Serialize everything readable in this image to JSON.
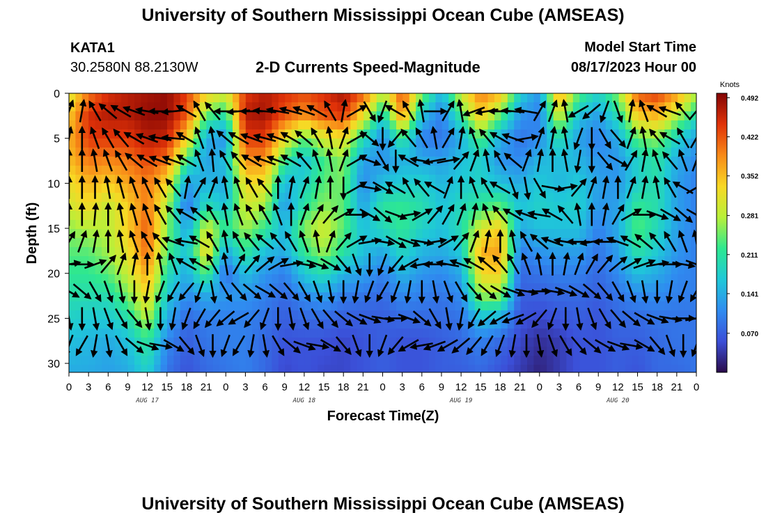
{
  "header": {
    "title": "University of Southern Mississippi Ocean Cube (AMSEAS)",
    "station_id": "KATA1",
    "station_coords": "30.2580N  88.2130W",
    "chart_heading": "2-D Currents Speed-Magnitude",
    "model_start_label": "Model Start Time",
    "model_start_value": "08/17/2023 Hour 00"
  },
  "footer": {
    "title": "University of Southern Mississippi Ocean Cube (AMSEAS)"
  },
  "chart_data": {
    "type": "heatmap",
    "title": "2-D Currents Speed-Magnitude",
    "xlabel": "Forecast Time(Z)",
    "ylabel": "Depth (ft)",
    "x_range_hours": [
      0,
      96
    ],
    "ylim": [
      0,
      31
    ],
    "y_inverted": true,
    "x_tick_labels": [
      "0",
      "3",
      "6",
      "9",
      "12",
      "15",
      "18",
      "21",
      "0",
      "3",
      "6",
      "9",
      "12",
      "15",
      "18",
      "21",
      "0",
      "3",
      "6",
      "9",
      "12",
      "15",
      "18",
      "21",
      "0",
      "3",
      "6",
      "9",
      "12",
      "15",
      "18",
      "21",
      "0"
    ],
    "y_ticks": [
      0,
      5,
      10,
      15,
      20,
      25,
      30
    ],
    "day_labels": [
      {
        "label": "AUG 17",
        "hour": 12
      },
      {
        "label": "AUG 18",
        "hour": 36
      },
      {
        "label": "AUG 19",
        "hour": 60
      },
      {
        "label": "AUG 20",
        "hour": 84
      }
    ],
    "colorbar": {
      "unit": "Knots",
      "ticks": [
        "0.492",
        "0.422",
        "0.352",
        "0.281",
        "0.211",
        "0.141",
        "0.070"
      ],
      "tick_values": [
        0.492,
        0.422,
        0.352,
        0.281,
        0.211,
        0.141,
        0.07
      ],
      "range": [
        0,
        0.5
      ],
      "colors": [
        "#2a0a4a",
        "#3b4fd8",
        "#2f8cf0",
        "#1fc8d8",
        "#2ee890",
        "#b8f03a",
        "#f8d824",
        "#f88a18",
        "#e03208",
        "#820404"
      ]
    },
    "speed_columns": [
      {
        "hour": 0,
        "depth": [
          0.3,
          0.34,
          0.36,
          0.35,
          0.32,
          0.3,
          0.26,
          0.24,
          0.22,
          0.2,
          0.18,
          0.16,
          0.14
        ]
      },
      {
        "hour": 3,
        "depth": [
          0.4,
          0.45,
          0.44,
          0.4,
          0.36,
          0.33,
          0.28,
          0.24,
          0.22,
          0.2,
          0.17,
          0.15,
          0.14
        ]
      },
      {
        "hour": 6,
        "depth": [
          0.45,
          0.47,
          0.44,
          0.39,
          0.34,
          0.29,
          0.28,
          0.27,
          0.24,
          0.2,
          0.17,
          0.14,
          0.13
        ]
      },
      {
        "hour": 9,
        "depth": [
          0.47,
          0.47,
          0.44,
          0.4,
          0.37,
          0.34,
          0.34,
          0.32,
          0.29,
          0.25,
          0.2,
          0.16,
          0.14
        ]
      },
      {
        "hour": 12,
        "depth": [
          0.48,
          0.49,
          0.47,
          0.43,
          0.4,
          0.4,
          0.42,
          0.41,
          0.37,
          0.33,
          0.28,
          0.22,
          0.18
        ]
      },
      {
        "hour": 15,
        "depth": [
          0.49,
          0.49,
          0.46,
          0.4,
          0.33,
          0.28,
          0.26,
          0.24,
          0.2,
          0.17,
          0.14,
          0.11,
          0.09
        ]
      },
      {
        "hour": 18,
        "depth": [
          0.44,
          0.42,
          0.34,
          0.22,
          0.13,
          0.09,
          0.13,
          0.16,
          0.14,
          0.11,
          0.08,
          0.07,
          0.06
        ]
      },
      {
        "hour": 21,
        "depth": [
          0.34,
          0.24,
          0.14,
          0.13,
          0.15,
          0.2,
          0.3,
          0.33,
          0.24,
          0.14,
          0.1,
          0.09,
          0.08
        ]
      },
      {
        "hour": 24,
        "depth": [
          0.3,
          0.2,
          0.12,
          0.16,
          0.14,
          0.16,
          0.22,
          0.14,
          0.08,
          0.12,
          0.1,
          0.1,
          0.09
        ]
      },
      {
        "hour": 27,
        "depth": [
          0.44,
          0.47,
          0.44,
          0.38,
          0.33,
          0.3,
          0.27,
          0.22,
          0.16,
          0.12,
          0.1,
          0.1,
          0.1
        ]
      },
      {
        "hour": 30,
        "depth": [
          0.47,
          0.48,
          0.44,
          0.38,
          0.32,
          0.27,
          0.22,
          0.16,
          0.12,
          0.1,
          0.09,
          0.08,
          0.08
        ]
      },
      {
        "hour": 33,
        "depth": [
          0.45,
          0.42,
          0.32,
          0.22,
          0.15,
          0.12,
          0.15,
          0.14,
          0.1,
          0.08,
          0.07,
          0.06,
          0.05
        ]
      },
      {
        "hour": 36,
        "depth": [
          0.43,
          0.38,
          0.24,
          0.16,
          0.18,
          0.21,
          0.26,
          0.22,
          0.17,
          0.11,
          0.08,
          0.06,
          0.06
        ]
      },
      {
        "hour": 39,
        "depth": [
          0.45,
          0.42,
          0.3,
          0.23,
          0.24,
          0.26,
          0.3,
          0.27,
          0.2,
          0.13,
          0.08,
          0.06,
          0.05
        ]
      },
      {
        "hour": 42,
        "depth": [
          0.48,
          0.44,
          0.32,
          0.26,
          0.25,
          0.24,
          0.24,
          0.21,
          0.15,
          0.1,
          0.07,
          0.05,
          0.05
        ]
      },
      {
        "hour": 45,
        "depth": [
          0.42,
          0.32,
          0.2,
          0.13,
          0.11,
          0.13,
          0.16,
          0.16,
          0.13,
          0.09,
          0.07,
          0.06,
          0.06
        ]
      },
      {
        "hour": 48,
        "depth": [
          0.28,
          0.18,
          0.11,
          0.12,
          0.16,
          0.21,
          0.19,
          0.14,
          0.1,
          0.08,
          0.07,
          0.07,
          0.07
        ]
      },
      {
        "hour": 51,
        "depth": [
          0.43,
          0.38,
          0.22,
          0.15,
          0.17,
          0.22,
          0.22,
          0.19,
          0.15,
          0.11,
          0.08,
          0.06,
          0.06
        ]
      },
      {
        "hour": 54,
        "depth": [
          0.26,
          0.16,
          0.1,
          0.14,
          0.18,
          0.2,
          0.18,
          0.15,
          0.12,
          0.1,
          0.08,
          0.06,
          0.06
        ]
      },
      {
        "hour": 57,
        "depth": [
          0.15,
          0.1,
          0.09,
          0.13,
          0.15,
          0.16,
          0.16,
          0.14,
          0.11,
          0.09,
          0.08,
          0.07,
          0.07
        ]
      },
      {
        "hour": 60,
        "depth": [
          0.3,
          0.22,
          0.14,
          0.16,
          0.17,
          0.19,
          0.2,
          0.17,
          0.14,
          0.11,
          0.09,
          0.08,
          0.07
        ]
      },
      {
        "hour": 63,
        "depth": [
          0.4,
          0.34,
          0.24,
          0.18,
          0.18,
          0.22,
          0.3,
          0.36,
          0.33,
          0.26,
          0.16,
          0.1,
          0.08
        ]
      },
      {
        "hour": 66,
        "depth": [
          0.36,
          0.24,
          0.14,
          0.12,
          0.16,
          0.24,
          0.34,
          0.37,
          0.34,
          0.26,
          0.14,
          0.08,
          0.06
        ]
      },
      {
        "hour": 69,
        "depth": [
          0.18,
          0.12,
          0.09,
          0.11,
          0.14,
          0.16,
          0.14,
          0.1,
          0.08,
          0.07,
          0.06,
          0.05,
          0.04
        ]
      },
      {
        "hour": 72,
        "depth": [
          0.12,
          0.1,
          0.11,
          0.15,
          0.17,
          0.18,
          0.16,
          0.12,
          0.09,
          0.07,
          0.05,
          0.03,
          0.02
        ]
      },
      {
        "hour": 75,
        "depth": [
          0.38,
          0.3,
          0.2,
          0.16,
          0.15,
          0.17,
          0.16,
          0.13,
          0.1,
          0.08,
          0.06,
          0.04,
          0.04
        ]
      },
      {
        "hour": 78,
        "depth": [
          0.24,
          0.16,
          0.13,
          0.15,
          0.17,
          0.18,
          0.16,
          0.13,
          0.1,
          0.08,
          0.07,
          0.06,
          0.06
        ]
      },
      {
        "hour": 81,
        "depth": [
          0.18,
          0.13,
          0.1,
          0.12,
          0.13,
          0.12,
          0.1,
          0.09,
          0.08,
          0.07,
          0.06,
          0.06,
          0.06
        ]
      },
      {
        "hour": 84,
        "depth": [
          0.26,
          0.2,
          0.14,
          0.12,
          0.12,
          0.13,
          0.14,
          0.13,
          0.11,
          0.09,
          0.08,
          0.07,
          0.07
        ]
      },
      {
        "hour": 87,
        "depth": [
          0.42,
          0.34,
          0.24,
          0.18,
          0.18,
          0.22,
          0.24,
          0.21,
          0.16,
          0.11,
          0.08,
          0.07,
          0.06
        ]
      },
      {
        "hour": 90,
        "depth": [
          0.44,
          0.36,
          0.26,
          0.21,
          0.2,
          0.2,
          0.19,
          0.17,
          0.14,
          0.11,
          0.09,
          0.08,
          0.08
        ]
      },
      {
        "hour": 93,
        "depth": [
          0.38,
          0.28,
          0.18,
          0.14,
          0.13,
          0.13,
          0.13,
          0.12,
          0.11,
          0.1,
          0.09,
          0.09,
          0.08
        ]
      },
      {
        "hour": 96,
        "depth": [
          0.28,
          0.2,
          0.13,
          0.11,
          0.1,
          0.1,
          0.1,
          0.1,
          0.1,
          0.1,
          0.09,
          0.09,
          0.09
        ]
      }
    ],
    "speed_depths_ft": [
      0,
      2.5,
      5,
      7.5,
      10,
      12.5,
      15,
      17.5,
      20,
      22.5,
      25,
      27.5,
      31
    ],
    "vector_depths_ft": [
      2,
      5,
      7.5,
      10.5,
      13.5,
      16.5,
      19,
      22,
      25,
      28
    ],
    "vector_hours": [
      0,
      2,
      4,
      6,
      8,
      10,
      12,
      14,
      16,
      18,
      20,
      22,
      24,
      26,
      28,
      30,
      32,
      34,
      36,
      38,
      40,
      42,
      44,
      46,
      48,
      50,
      52,
      54,
      56,
      58,
      60,
      62,
      64,
      66,
      68,
      70,
      72,
      74,
      76,
      78,
      80,
      82,
      84,
      86,
      88,
      90,
      92,
      94,
      96
    ],
    "vector_directions_deg": [
      [
        20,
        10,
        330,
        310,
        300,
        290,
        280,
        270,
        265,
        300,
        330,
        320,
        270,
        265,
        270,
        275,
        280,
        285,
        290,
        300,
        330,
        10,
        60,
        150,
        200,
        300,
        330,
        350,
        90,
        30,
        350,
        250,
        260,
        270,
        275,
        280,
        30,
        20,
        350,
        240,
        230,
        200,
        160,
        10,
        340,
        300,
        290,
        320,
        40
      ],
      [
        10,
        0,
        340,
        330,
        320,
        300,
        290,
        280,
        275,
        300,
        340,
        350,
        310,
        300,
        290,
        285,
        290,
        300,
        310,
        330,
        350,
        20,
        60,
        130,
        180,
        220,
        320,
        330,
        350,
        30,
        10,
        340,
        320,
        300,
        290,
        80,
        20,
        10,
        350,
        200,
        180,
        150,
        140,
        20,
        350,
        320,
        300,
        330,
        30
      ],
      [
        0,
        0,
        350,
        340,
        330,
        310,
        300,
        290,
        290,
        300,
        340,
        355,
        330,
        320,
        300,
        290,
        290,
        300,
        320,
        340,
        350,
        20,
        60,
        110,
        150,
        180,
        300,
        280,
        260,
        80,
        40,
        20,
        350,
        330,
        310,
        20,
        10,
        0,
        350,
        190,
        180,
        140,
        120,
        30,
        10,
        340,
        320,
        340,
        20
      ],
      [
        0,
        0,
        0,
        350,
        345,
        340,
        335,
        330,
        320,
        10,
        30,
        20,
        350,
        340,
        330,
        320,
        0,
        10,
        20,
        10,
        0,
        180,
        60,
        100,
        120,
        300,
        330,
        320,
        300,
        20,
        0,
        340,
        330,
        300,
        160,
        170,
        150,
        100,
        80,
        40,
        20,
        10,
        0,
        20,
        10,
        350,
        330,
        300,
        60
      ],
      [
        0,
        0,
        5,
        0,
        350,
        345,
        340,
        330,
        320,
        300,
        310,
        330,
        350,
        340,
        330,
        330,
        340,
        0,
        20,
        30,
        40,
        60,
        90,
        120,
        130,
        110,
        80,
        60,
        40,
        30,
        20,
        10,
        340,
        320,
        300,
        290,
        280,
        300,
        320,
        350,
        0,
        10,
        30,
        60,
        90,
        110,
        120,
        130,
        120
      ],
      [
        30,
        20,
        10,
        0,
        350,
        340,
        330,
        320,
        290,
        280,
        300,
        330,
        350,
        330,
        320,
        310,
        320,
        330,
        340,
        350,
        20,
        40,
        60,
        80,
        100,
        120,
        110,
        100,
        80,
        60,
        40,
        20,
        10,
        0,
        350,
        330,
        310,
        290,
        280,
        270,
        260,
        270,
        290,
        300,
        310,
        320,
        330,
        340,
        350
      ],
      [
        80,
        90,
        70,
        40,
        20,
        10,
        0,
        350,
        340,
        300,
        300,
        330,
        350,
        30,
        40,
        50,
        60,
        80,
        100,
        110,
        120,
        140,
        160,
        180,
        200,
        220,
        240,
        260,
        270,
        280,
        290,
        300,
        310,
        320,
        330,
        340,
        350,
        0,
        10,
        20,
        30,
        40,
        50,
        60,
        70,
        80,
        90,
        100,
        110
      ],
      [
        120,
        130,
        150,
        160,
        170,
        180,
        190,
        200,
        210,
        220,
        200,
        170,
        150,
        140,
        130,
        120,
        130,
        140,
        150,
        160,
        170,
        180,
        190,
        200,
        210,
        200,
        190,
        180,
        170,
        160,
        150,
        140,
        130,
        120,
        110,
        100,
        90,
        100,
        110,
        120,
        130,
        140,
        150,
        160,
        170,
        180,
        190,
        200,
        210
      ],
      [
        170,
        180,
        170,
        160,
        150,
        140,
        170,
        180,
        190,
        200,
        210,
        220,
        230,
        240,
        220,
        200,
        180,
        170,
        160,
        150,
        140,
        130,
        120,
        110,
        100,
        90,
        110,
        130,
        150,
        170,
        190,
        210,
        230,
        240,
        250,
        240,
        220,
        200,
        180,
        170,
        160,
        150,
        140,
        130,
        120,
        110,
        100,
        90,
        80
      ],
      [
        200,
        210,
        190,
        170,
        150,
        130,
        110,
        100,
        120,
        140,
        160,
        180,
        200,
        210,
        190,
        170,
        150,
        130,
        110,
        100,
        120,
        140,
        160,
        180,
        200,
        220,
        240,
        260,
        250,
        240,
        230,
        220,
        210,
        200,
        190,
        180,
        170,
        160,
        150,
        140,
        130,
        120,
        110,
        100,
        120,
        140,
        160,
        180,
        200
      ]
    ]
  }
}
